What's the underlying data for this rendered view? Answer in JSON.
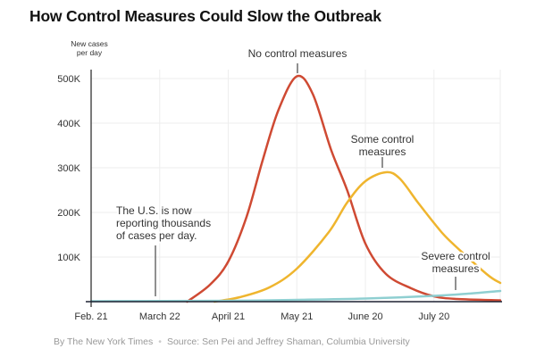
{
  "title": "How Control Measures Could Slow the Outbreak",
  "footer": {
    "byline": "By The New York Times",
    "separator": "•",
    "source": "Source: Sen Pei and Jeffrey Shaman, Columbia University"
  },
  "chart_data": {
    "type": "line",
    "title": "How Control Measures Could Slow the Outbreak",
    "ylabel": [
      "New cases",
      "per day"
    ],
    "xlim": [
      "2020-02-21",
      "2020-08-18"
    ],
    "ylim": [
      0,
      520000
    ],
    "x_ticks": [
      {
        "date": "2020-02-21",
        "label": "Feb. 21"
      },
      {
        "date": "2020-03-22",
        "label": "March 22"
      },
      {
        "date": "2020-04-21",
        "label": "April 21"
      },
      {
        "date": "2020-05-21",
        "label": "May 21"
      },
      {
        "date": "2020-06-20",
        "label": "June 20"
      },
      {
        "date": "2020-07-20",
        "label": "July 20"
      }
    ],
    "y_ticks": [
      {
        "value": 100000,
        "label": "100K"
      },
      {
        "value": 200000,
        "label": "200K"
      },
      {
        "value": 300000,
        "label": "300K"
      },
      {
        "value": 400000,
        "label": "400K"
      },
      {
        "value": 500000,
        "label": "500K"
      }
    ],
    "grid": true,
    "series": [
      {
        "name": "No control measures",
        "color": "#cf4a33",
        "points": [
          [
            "2020-04-03",
            0
          ],
          [
            "2020-04-13",
            38000
          ],
          [
            "2020-04-21",
            90000
          ],
          [
            "2020-04-29",
            190000
          ],
          [
            "2020-05-06",
            316000
          ],
          [
            "2020-05-13",
            430000
          ],
          [
            "2020-05-21",
            505000
          ],
          [
            "2020-05-28",
            465000
          ],
          [
            "2020-06-05",
            340000
          ],
          [
            "2020-06-12",
            250000
          ],
          [
            "2020-06-20",
            130000
          ],
          [
            "2020-06-29",
            62000
          ],
          [
            "2020-07-10",
            30000
          ],
          [
            "2020-07-20",
            12000
          ],
          [
            "2020-07-30",
            6000
          ],
          [
            "2020-08-18",
            3000
          ]
        ]
      },
      {
        "name": "Some control measures",
        "color": "#efb52e",
        "points": [
          [
            "2020-04-15",
            0
          ],
          [
            "2020-04-26",
            10000
          ],
          [
            "2020-05-09",
            32000
          ],
          [
            "2020-05-21",
            74000
          ],
          [
            "2020-06-04",
            156000
          ],
          [
            "2020-06-12",
            222000
          ],
          [
            "2020-06-20",
            270000
          ],
          [
            "2020-06-29",
            290000
          ],
          [
            "2020-07-05",
            276000
          ],
          [
            "2020-07-13",
            222000
          ],
          [
            "2020-07-21",
            170000
          ],
          [
            "2020-07-27",
            136000
          ],
          [
            "2020-08-12",
            62000
          ],
          [
            "2020-08-18",
            42000
          ]
        ]
      },
      {
        "name": "Severe control measures",
        "color": "#8fcfd1",
        "points": [
          [
            "2020-02-21",
            1000
          ],
          [
            "2020-04-21",
            2000
          ],
          [
            "2020-05-21",
            4000
          ],
          [
            "2020-06-20",
            7000
          ],
          [
            "2020-07-20",
            13000
          ],
          [
            "2020-08-04",
            18000
          ],
          [
            "2020-08-18",
            24000
          ]
        ]
      }
    ],
    "annotations": [
      {
        "text": [
          "No control measures"
        ],
        "series": "No control measures"
      },
      {
        "text": [
          "Some control",
          "measures"
        ],
        "series": "Some control measures"
      },
      {
        "text": [
          "Severe control",
          "measures"
        ],
        "series": "Severe control measures"
      },
      {
        "text": [
          "The U.S. is now",
          "reporting thousands",
          "of cases per day."
        ],
        "date": "2020-03-19"
      }
    ]
  }
}
